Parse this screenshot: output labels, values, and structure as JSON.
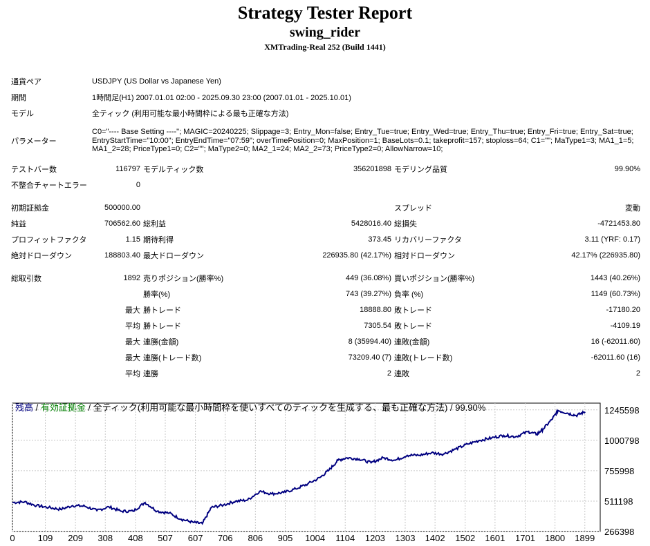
{
  "header": {
    "title": "Strategy Tester Report",
    "ea_name": "swing_rider",
    "server": "XMTrading-Real 252 (Build 1441)"
  },
  "info": {
    "symbol_label": "通貨ペア",
    "symbol_value": "USDJPY (US Dollar vs Japanese Yen)",
    "period_label": "期間",
    "period_value": "1時間足(H1) 2007.01.01 02:00 - 2025.09.30 23:00 (2007.01.01 - 2025.10.01)",
    "model_label": "モデル",
    "model_value": "全ティック (利用可能な最小時間枠による最も正確な方法)",
    "params_label": "パラメーター",
    "params_value": "C0=\"---- Base Setting ----\"; MAGIC=20240225; Slippage=3; Entry_Mon=false; Entry_Tue=true; Entry_Wed=true; Entry_Thu=true; Entry_Fri=true; Entry_Sat=true; EntryStartTime=\"10:00\"; EntryEndTime=\"07:59\"; overTimePosition=0; MaxPosition=1; BaseLots=0.1; takeprofit=157; stoploss=64; C1=\"\"; MaType1=3; MA1_1=5; MA1_2=28; PriceType1=0; C2=\"\"; MaType2=0; MA2_1=24; MA2_2=73; PriceType2=0; AllowNarrow=10;"
  },
  "stats": {
    "bars_label": "テストバー数",
    "bars": "116797",
    "ticks_label": "モデルティック数",
    "ticks": "356201898",
    "quality_label": "モデリング品質",
    "quality": "99.90%",
    "mismatch_label": "不整合チャートエラー",
    "mismatch": "0",
    "deposit_label": "初期証拠金",
    "deposit": "500000.00",
    "spread_label": "スプレッド",
    "spread": "変動",
    "net_label": "純益",
    "net": "706562.60",
    "gross_profit_label": "総利益",
    "gross_profit": "5428016.40",
    "gross_loss_label": "総損失",
    "gross_loss": "-4721453.80",
    "pf_label": "プロフィットファクタ",
    "pf": "1.15",
    "expected_label": "期待利得",
    "expected": "373.45",
    "recovery_label": "リカバリーファクタ",
    "recovery": "3.11 (YRF: 0.17)",
    "abs_dd_label": "絶対ドローダウン",
    "abs_dd": "188803.40",
    "max_dd_label": "最大ドローダウン",
    "max_dd": "226935.80 (42.17%)",
    "rel_dd_label": "相対ドローダウン",
    "rel_dd": "42.17% (226935.80)",
    "total_trades_label": "総取引数",
    "total_trades": "1892",
    "short_label": "売りポジション(勝率%)",
    "short": "449 (36.08%)",
    "long_label": "買いポジション(勝率%)",
    "long": "1443 (40.26%)",
    "win_rate_label": "勝率(%)",
    "win_rate": "743 (39.27%)",
    "loss_rate_label": "負率 (%)",
    "loss_rate": "1149 (60.73%)",
    "max_label": "最大",
    "avg_label": "平均",
    "win_trade_label": "勝トレード",
    "loss_trade_label": "敗トレード",
    "largest_win": "18888.80",
    "largest_loss": "-17180.20",
    "avg_win": "7305.54",
    "avg_loss": "-4109.19",
    "consec_win_amt_label": "連勝(金額)",
    "consec_win_amt": "8 (35994.40)",
    "consec_loss_amt_label": "連敗(金額)",
    "consec_loss_amt": "16 (-62011.60)",
    "consec_win_cnt_label": "連勝(トレード数)",
    "consec_win_cnt": "73209.40 (7)",
    "consec_loss_cnt_label": "連敗(トレード数)",
    "consec_loss_cnt": "-62011.60 (16)",
    "avg_consec_win_label": "連勝",
    "avg_consec_win": "2",
    "avg_consec_loss_label": "連敗",
    "avg_consec_loss": "2"
  },
  "chart_data": {
    "type": "line",
    "legend_balance": "残高",
    "legend_sep1": " / ",
    "legend_equity": "有効証拠金",
    "legend_rest": " / 全ティック(利用可能な最小時間枠を使いすべてのティックを生成する、最も正確な方法) / 99.90%",
    "y_ticks": [
      "1245598",
      "1000798",
      "755998",
      "511198",
      "266398"
    ],
    "y_tick_values": [
      1245598,
      1000798,
      755998,
      511198,
      266398
    ],
    "x_ticks": [
      "0",
      "109",
      "209",
      "308",
      "408",
      "507",
      "607",
      "706",
      "806",
      "905",
      "1004",
      "1104",
      "1203",
      "1303",
      "1402",
      "1502",
      "1601",
      "1701",
      "1800",
      "1899"
    ],
    "x_tick_values": [
      0,
      109,
      209,
      308,
      408,
      507,
      607,
      706,
      806,
      905,
      1004,
      1104,
      1203,
      1303,
      1402,
      1502,
      1601,
      1701,
      1800,
      1899
    ],
    "xlim": [
      0,
      1950
    ],
    "ylim": [
      266398,
      1300000
    ],
    "colors": {
      "balance": "#000080",
      "equity": "#008000",
      "grid": "#c8c8c8"
    },
    "series": [
      {
        "x": [
          0,
          40,
          80,
          120,
          160,
          200,
          240,
          280,
          320,
          360,
          400,
          440,
          480,
          520,
          560,
          600,
          630,
          660,
          700,
          740,
          780,
          820,
          860,
          900,
          940,
          980,
          1020,
          1050,
          1080,
          1110,
          1150,
          1190,
          1230,
          1270,
          1310,
          1350,
          1390,
          1430,
          1470,
          1510,
          1550,
          1590,
          1630,
          1670,
          1710,
          1740,
          1760,
          1790,
          1810,
          1840,
          1870,
          1900
        ],
        "values": [
          500000,
          505000,
          475000,
          460000,
          445000,
          475000,
          470000,
          435000,
          465000,
          430000,
          430000,
          500000,
          430000,
          415000,
          365000,
          340000,
          330000,
          460000,
          480000,
          510000,
          520000,
          590000,
          570000,
          580000,
          610000,
          650000,
          700000,
          760000,
          840000,
          860000,
          850000,
          820000,
          860000,
          840000,
          880000,
          880000,
          900000,
          890000,
          930000,
          970000,
          1000000,
          1020000,
          1040000,
          1030000,
          1070000,
          1050000,
          1090000,
          1170000,
          1240000,
          1220000,
          1200000,
          1230000
        ]
      }
    ]
  }
}
